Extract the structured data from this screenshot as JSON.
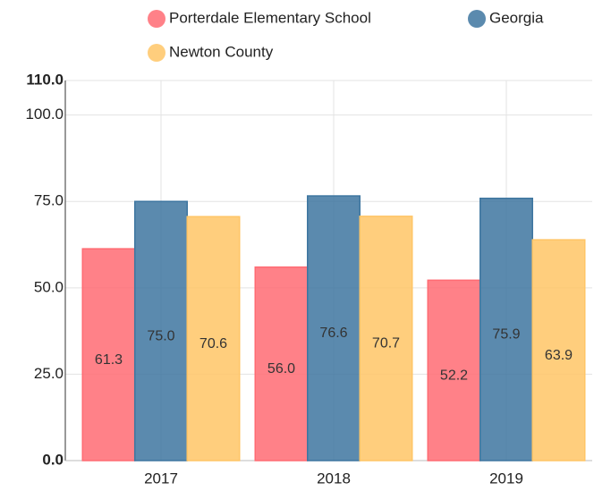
{
  "chart_data": {
    "type": "bar",
    "categories": [
      "2017",
      "2018",
      "2019"
    ],
    "series": [
      {
        "name": "Porterdale Elementary School",
        "color": "#ff6b73",
        "values": [
          61.3,
          56.0,
          52.2
        ],
        "value_labels": [
          "61.3",
          "56.0",
          "52.2"
        ]
      },
      {
        "name": "Georgia",
        "color": "#3e76a0",
        "values": [
          75.0,
          76.6,
          75.9
        ],
        "value_labels": [
          "75.0",
          "76.6",
          "75.9"
        ]
      },
      {
        "name": "Newton County",
        "color": "#ffc566",
        "values": [
          70.6,
          70.7,
          63.9
        ],
        "value_labels": [
          "70.6",
          "70.7",
          "63.9"
        ]
      }
    ],
    "ylim": [
      0,
      110
    ],
    "yticks": [
      {
        "value": 0,
        "label": "0.0"
      },
      {
        "value": 25,
        "label": "25.0"
      },
      {
        "value": 50,
        "label": "50.0"
      },
      {
        "value": 75,
        "label": "75.0"
      },
      {
        "value": 100,
        "label": "100.0"
      },
      {
        "value": 110,
        "label": "110.0"
      }
    ],
    "grid": true
  }
}
